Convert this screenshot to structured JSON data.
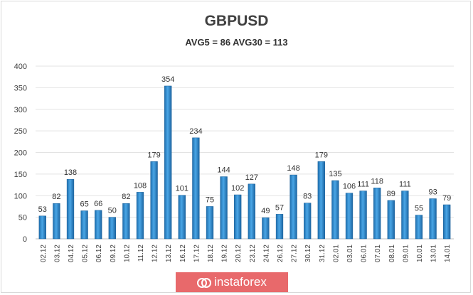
{
  "watermark": {
    "brand": "instaforex",
    "icon": "instaforex-logo-icon"
  },
  "chart_data": {
    "type": "bar",
    "title": "GBPUSD",
    "subtitle": "AVG5 = 86 AVG30 = 113",
    "xlabel": "",
    "ylabel": "",
    "ylim": [
      0,
      400
    ],
    "yticks": [
      0,
      50,
      100,
      150,
      200,
      250,
      300,
      350,
      400
    ],
    "grid": true,
    "bar_color": "#2e8bd0",
    "categories": [
      "02.12",
      "03.12",
      "04.12",
      "05.12",
      "06.12",
      "09.12",
      "10.12",
      "11.12",
      "12.12",
      "13.12",
      "16.12",
      "17.12",
      "18.12",
      "19.12",
      "20.12",
      "23.12",
      "24.12",
      "26.12",
      "27.12",
      "30.12",
      "31.12",
      "02.01",
      "03.01",
      "06.01",
      "07.01",
      "08.01",
      "09.01",
      "10.01",
      "13.01",
      "14.01"
    ],
    "values": [
      53,
      82,
      138,
      65,
      66,
      50,
      82,
      108,
      179,
      354,
      101,
      234,
      75,
      144,
      102,
      127,
      49,
      57,
      148,
      83,
      179,
      135,
      106,
      111,
      118,
      89,
      111,
      55,
      93,
      79
    ],
    "data_labels": [
      "53",
      "82",
      "138",
      "65",
      "66",
      "50",
      "82",
      "108",
      "179",
      "354",
      "101",
      "234",
      "75",
      "144",
      "102",
      "127",
      "49",
      "57",
      "148",
      "83",
      "179",
      "135",
      "106",
      "111",
      "118",
      "89",
      "111",
      "55",
      "93",
      "79"
    ]
  }
}
